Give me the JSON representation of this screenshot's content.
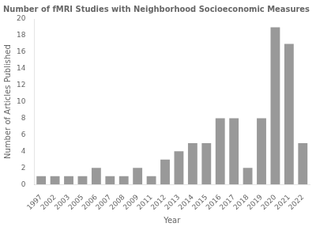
{
  "chart_data": {
    "type": "bar",
    "title": "Number of fMRI Studies with Neighborhood Socioeconomic Measures",
    "xlabel": "Year",
    "ylabel": "Number of Articles Published",
    "categories": [
      "1997",
      "2002",
      "2003",
      "2005",
      "2006",
      "2007",
      "2008",
      "2009",
      "2011",
      "2012",
      "2013",
      "2014",
      "2015",
      "2016",
      "2017",
      "2018",
      "2019",
      "2020",
      "2021",
      "2022"
    ],
    "values": [
      1,
      1,
      1,
      1,
      2,
      1,
      1,
      2,
      1,
      3,
      4,
      5,
      5,
      8,
      8,
      2,
      8,
      19,
      17,
      5
    ],
    "color": "#999999",
    "ylim": [
      0,
      20
    ],
    "yticks": [
      0,
      2,
      4,
      6,
      8,
      10,
      12,
      14,
      16,
      18,
      20
    ],
    "grid": false
  }
}
